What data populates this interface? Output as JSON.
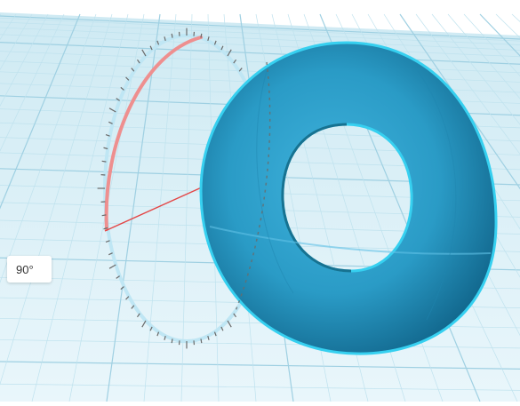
{
  "rotation_gizmo": {
    "angle_label": "90°"
  },
  "colors": {
    "grid_background": "#ffffff",
    "workplane": "#cfeaf3",
    "grid_line_major": "#9fd0e2",
    "grid_line_minor": "#bfe2ee",
    "torus_fill": "#2a9bc6",
    "torus_dark": "#0e5f84",
    "torus_highlight": "#3fb2dc",
    "torus_outline": "#36d0f0",
    "rotation_arc_active": "#ee8f8f",
    "rotation_arc_inactive": "#bfe6f4",
    "rotation_axis": "#e34646",
    "tick_marks": "#6a6a6a"
  },
  "scene": {
    "shape_type": "torus-icon",
    "rotation_handle": "rotate-arc-icon"
  }
}
